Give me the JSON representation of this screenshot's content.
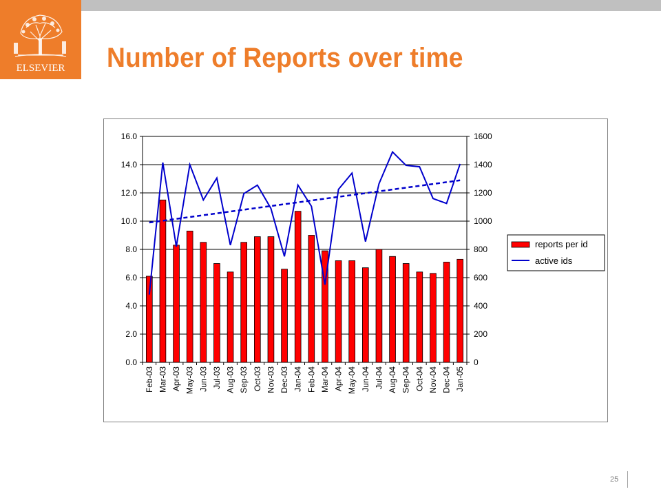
{
  "slide": {
    "title": "Number of Reports over time",
    "page_number": "25",
    "logo_text": "ELSEVIER",
    "accent_color": "#ee7d2a",
    "bar_color": "#ff0000",
    "line_color": "#0000cc"
  },
  "chart_data": {
    "type": "bar",
    "categories": [
      "Feb-03",
      "Mar-03",
      "Apr-03",
      "May-03",
      "Jun-03",
      "Jul-03",
      "Aug-03",
      "Sep-03",
      "Oct-03",
      "Nov-03",
      "Dec-03",
      "Jan-04",
      "Feb-04",
      "Mar-04",
      "Apr-04",
      "May-04",
      "Jun-04",
      "Jul-04",
      "Aug-04",
      "Sep-04",
      "Oct-04",
      "Nov-04",
      "Dec-04",
      "Jan-05"
    ],
    "series": [
      {
        "name": "reports per id",
        "type": "bar",
        "axis": "left",
        "values": [
          6.1,
          11.5,
          8.3,
          9.3,
          8.5,
          7.0,
          6.4,
          8.5,
          8.9,
          8.9,
          6.6,
          10.7,
          9.0,
          7.9,
          7.2,
          7.2,
          6.7,
          8.0,
          7.5,
          7.0,
          6.4,
          6.3,
          7.1,
          7.3
        ]
      },
      {
        "name": "active ids",
        "type": "line",
        "axis": "right",
        "values": [
          480,
          1415,
          820,
          1400,
          1150,
          1305,
          830,
          1195,
          1255,
          1090,
          750,
          1255,
          1105,
          550,
          1225,
          1340,
          855,
          1265,
          1490,
          1395,
          1385,
          1160,
          1125,
          1405
        ]
      },
      {
        "type": "line",
        "style": "dashed",
        "axis": "right",
        "trend_of": "active ids",
        "values": [
          990,
          1003,
          1016,
          1029,
          1042,
          1055,
          1068,
          1081,
          1094,
          1107,
          1120,
          1133,
          1146,
          1159,
          1172,
          1185,
          1198,
          1211,
          1224,
          1237,
          1250,
          1263,
          1276,
          1289
        ]
      }
    ],
    "y_left": {
      "ylim": [
        0,
        16
      ],
      "ticks": [
        "0.0",
        "2.0",
        "4.0",
        "6.0",
        "8.0",
        "10.0",
        "12.0",
        "14.0",
        "16.0"
      ]
    },
    "y_right": {
      "ylim": [
        0,
        1600
      ],
      "ticks": [
        "0",
        "200",
        "400",
        "600",
        "800",
        "1000",
        "1200",
        "1400",
        "1600"
      ]
    },
    "grid": true,
    "legend": {
      "placement": "right",
      "entries": [
        "reports per id",
        "active ids"
      ]
    }
  }
}
